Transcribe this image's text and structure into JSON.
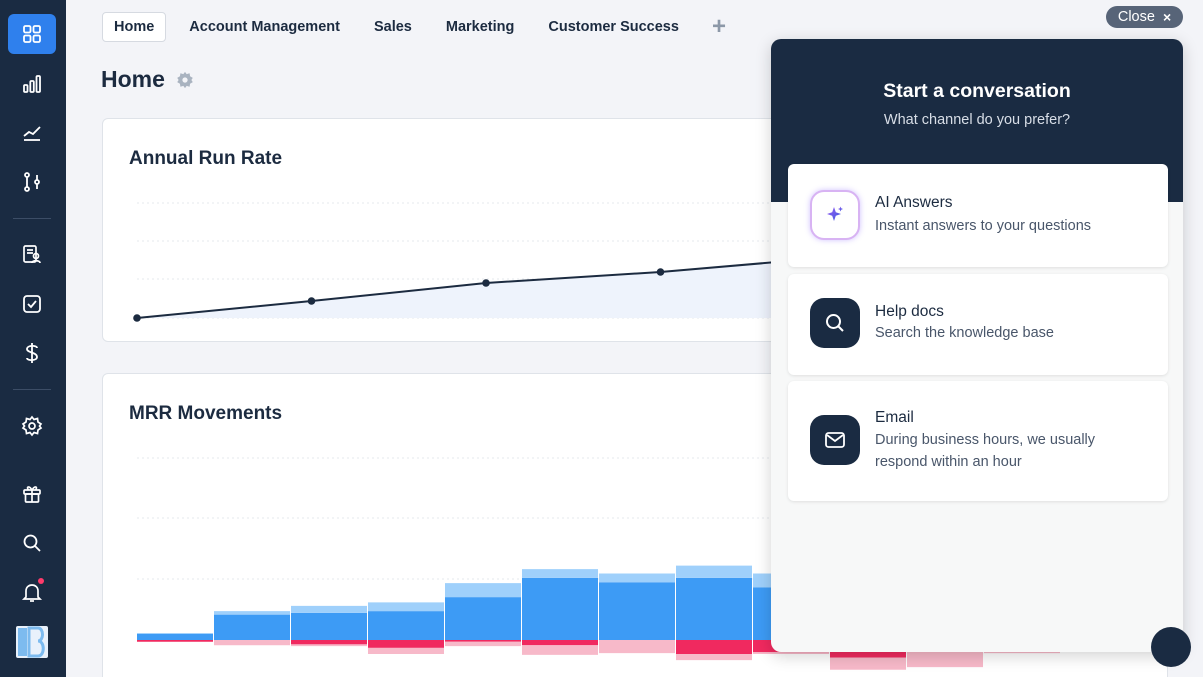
{
  "sidebar": {
    "items": [
      {
        "icon": "dashboard-grid-icon",
        "active": true
      },
      {
        "icon": "bar-chart-icon"
      },
      {
        "icon": "trend-line-icon"
      },
      {
        "icon": "pipeline-icon"
      },
      {
        "icon": "customers-icon"
      },
      {
        "icon": "tasks-icon"
      },
      {
        "icon": "dollar-icon"
      },
      {
        "icon": "settings-icon"
      },
      {
        "icon": "gift-icon"
      },
      {
        "icon": "search-icon"
      },
      {
        "icon": "notifications-icon"
      }
    ],
    "logo": "B"
  },
  "tabs": [
    "Home",
    "Account Management",
    "Sales",
    "Marketing",
    "Customer Success"
  ],
  "tab_add": "+",
  "page": {
    "title": "Home"
  },
  "cards": {
    "arr": {
      "title": "Annual Run Rate"
    },
    "mrr": {
      "title": "MRR Movements"
    }
  },
  "arr_chart": {
    "type": "line",
    "values": [
      0,
      17,
      35,
      46,
      61
    ],
    "ylim": [
      0,
      115
    ],
    "color": "#1c2b40"
  },
  "mrr_chart": {
    "type": "bar",
    "series": [
      {
        "name": "",
        "color": "#3d9bf5",
        "values": [
          7,
          29,
          31,
          33,
          49,
          71,
          66,
          71,
          60,
          0,
          0,
          0
        ]
      },
      {
        "name": "",
        "color": "#9fd0fb",
        "values": [
          1,
          4,
          8,
          10,
          16,
          10,
          10,
          14,
          16,
          0,
          0,
          0
        ]
      },
      {
        "name": "",
        "color": "#f0295f",
        "values": [
          -2,
          0,
          -5,
          -9,
          -2,
          -6,
          0,
          -16,
          -14,
          -20,
          0,
          -6
        ]
      },
      {
        "name": "",
        "color": "#f7b9c9",
        "values": [
          0,
          -6,
          -2,
          -7,
          -5,
          -11,
          -15,
          -7,
          -2,
          -14,
          -31,
          -9
        ]
      }
    ],
    "ylim": [
      -40,
      180
    ]
  },
  "chat": {
    "close_label": "Close",
    "close_icon": "×",
    "title": "Start a conversation",
    "subtitle": "What channel do you prefer?",
    "options": [
      {
        "icon": "sparkle-icon",
        "title": "AI Answers",
        "desc": "Instant answers to your questions"
      },
      {
        "icon": "search-icon",
        "title": "Help docs",
        "desc": "Search the knowledge base"
      },
      {
        "icon": "mail-icon",
        "title": "Email",
        "desc": "During business hours, we usually respond within an hour"
      }
    ]
  },
  "colors": {
    "sidebar_bg": "#1a2b42",
    "accent": "#2f80ed"
  }
}
